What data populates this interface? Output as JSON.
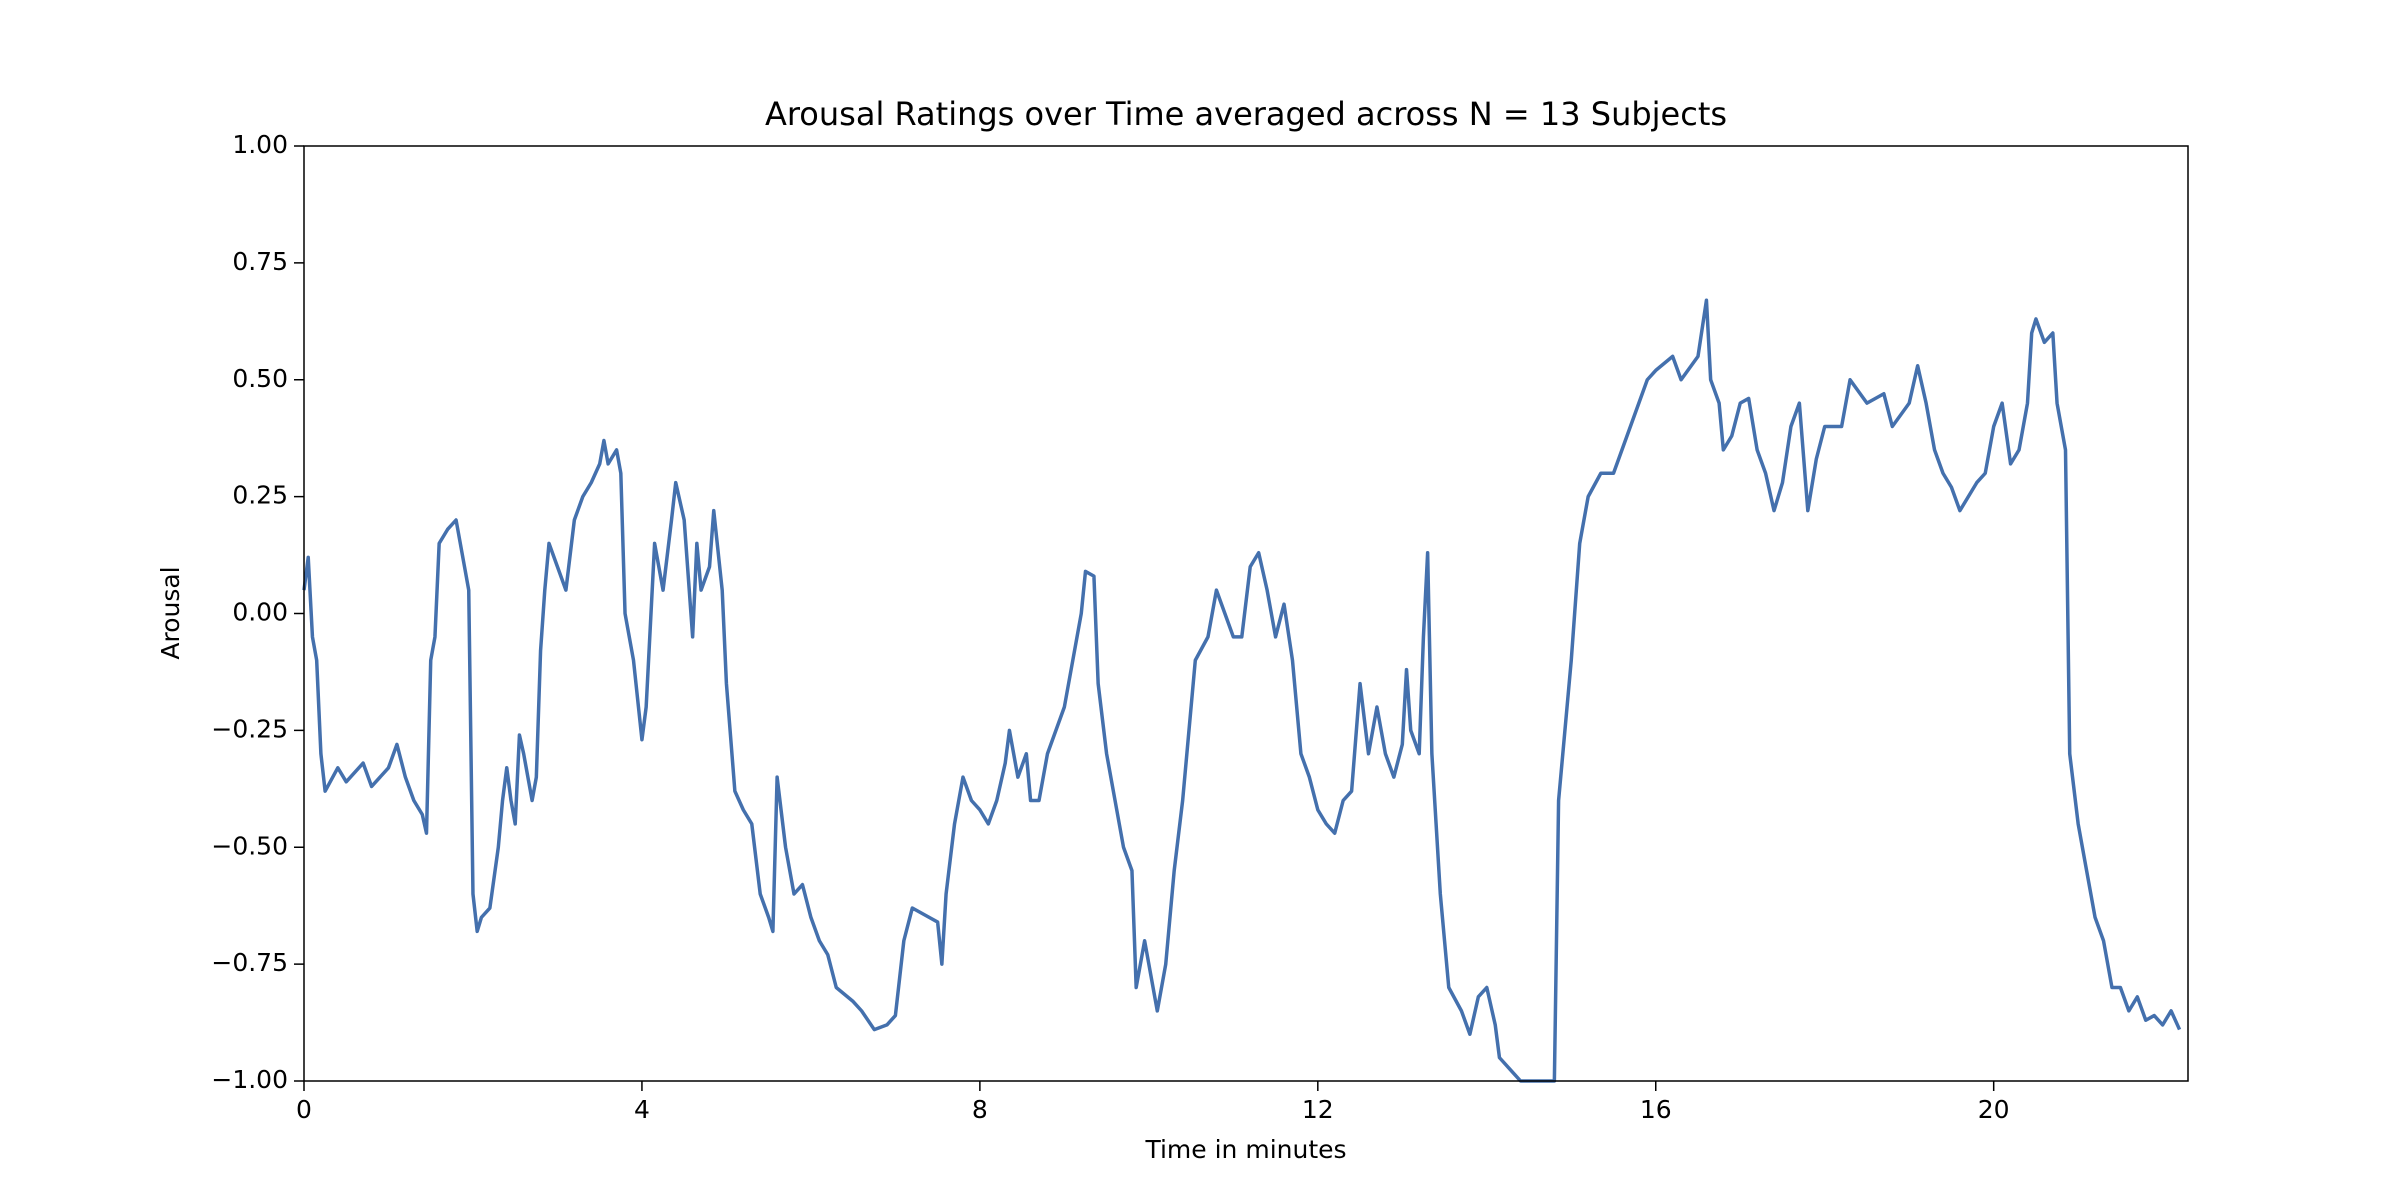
{
  "chart_data": {
    "type": "line",
    "title": "Arousal Ratings over Time averaged across N = 13 Subjects",
    "x_label": "Time in minutes",
    "y_label": "Arousal",
    "color": "#4470ad",
    "xlim": [
      0,
      22.3
    ],
    "ylim": [
      -1.0,
      1.0
    ],
    "xticks": [
      0,
      4,
      8,
      12,
      16,
      20
    ],
    "yticks": [
      {
        "value": -1.0,
        "label": "−1.00"
      },
      {
        "value": -0.75,
        "label": "−0.75"
      },
      {
        "value": -0.5,
        "label": "−0.50"
      },
      {
        "value": -0.25,
        "label": "−0.25"
      },
      {
        "value": 0.0,
        "label": "0.00"
      },
      {
        "value": 0.25,
        "label": "0.25"
      },
      {
        "value": 0.5,
        "label": "0.50"
      },
      {
        "value": 0.75,
        "label": "0.75"
      },
      {
        "value": 1.0,
        "label": "1.00"
      }
    ],
    "x": [
      0,
      0.05,
      0.1,
      0.15,
      0.2,
      0.25,
      0.4,
      0.5,
      0.7,
      0.8,
      1.0,
      1.1,
      1.2,
      1.3,
      1.4,
      1.45,
      1.5,
      1.55,
      1.6,
      1.7,
      1.8,
      1.9,
      1.95,
      2.0,
      2.05,
      2.1,
      2.2,
      2.3,
      2.35,
      2.4,
      2.45,
      2.5,
      2.55,
      2.6,
      2.7,
      2.75,
      2.8,
      2.85,
      2.9,
      3.0,
      3.1,
      3.2,
      3.3,
      3.4,
      3.5,
      3.55,
      3.6,
      3.7,
      3.75,
      3.8,
      3.9,
      4.0,
      4.05,
      4.15,
      4.25,
      4.35,
      4.4,
      4.5,
      4.6,
      4.65,
      4.7,
      4.8,
      4.85,
      4.95,
      5.0,
      5.1,
      5.2,
      5.3,
      5.4,
      5.5,
      5.55,
      5.6,
      5.7,
      5.8,
      5.9,
      6.0,
      6.1,
      6.2,
      6.3,
      6.5,
      6.6,
      6.75,
      6.9,
      7.0,
      7.1,
      7.2,
      7.4,
      7.5,
      7.55,
      7.6,
      7.7,
      7.8,
      7.9,
      8.0,
      8.1,
      8.2,
      8.3,
      8.35,
      8.45,
      8.55,
      8.6,
      8.7,
      8.8,
      8.9,
      9.0,
      9.1,
      9.2,
      9.25,
      9.35,
      9.4,
      9.5,
      9.6,
      9.7,
      9.8,
      9.85,
      9.95,
      10.1,
      10.2,
      10.3,
      10.4,
      10.45,
      10.55,
      10.7,
      10.8,
      10.9,
      11.0,
      11.1,
      11.2,
      11.3,
      11.4,
      11.5,
      11.6,
      11.7,
      11.8,
      11.9,
      12.0,
      12.1,
      12.2,
      12.3,
      12.4,
      12.5,
      12.6,
      12.7,
      12.8,
      12.9,
      13.0,
      13.05,
      13.1,
      13.2,
      13.25,
      13.3,
      13.35,
      13.4,
      13.45,
      13.5,
      13.55,
      13.7,
      13.8,
      13.9,
      14.0,
      14.1,
      14.15,
      14.3,
      14.4,
      14.7,
      14.8,
      14.85,
      15.0,
      15.1,
      15.2,
      15.35,
      15.5,
      15.6,
      15.8,
      15.9,
      16.0,
      16.2,
      16.3,
      16.5,
      16.6,
      16.65,
      16.75,
      16.8,
      16.9,
      17.0,
      17.1,
      17.2,
      17.3,
      17.4,
      17.5,
      17.6,
      17.7,
      17.8,
      17.9,
      18.0,
      18.2,
      18.3,
      18.5,
      18.7,
      18.8,
      19.0,
      19.1,
      19.2,
      19.3,
      19.4,
      19.5,
      19.6,
      19.8,
      19.9,
      20.0,
      20.1,
      20.2,
      20.3,
      20.4,
      20.45,
      20.5,
      20.6,
      20.7,
      20.75,
      20.85,
      20.9,
      21.0,
      21.1,
      21.2,
      21.3,
      21.4,
      21.5,
      21.6,
      21.7,
      21.8,
      21.9,
      22.0,
      22.1,
      22.2
    ],
    "values": [
      0.05,
      0.12,
      -0.05,
      -0.1,
      -0.3,
      -0.38,
      -0.33,
      -0.36,
      -0.32,
      -0.37,
      -0.33,
      -0.28,
      -0.35,
      -0.4,
      -0.43,
      -0.47,
      -0.1,
      -0.05,
      0.15,
      0.18,
      0.2,
      0.1,
      0.05,
      -0.6,
      -0.68,
      -0.65,
      -0.63,
      -0.5,
      -0.4,
      -0.33,
      -0.4,
      -0.45,
      -0.26,
      -0.3,
      -0.4,
      -0.35,
      -0.08,
      0.05,
      0.15,
      0.1,
      0.05,
      0.2,
      0.25,
      0.28,
      0.32,
      0.37,
      0.32,
      0.35,
      0.3,
      0.0,
      -0.1,
      -0.27,
      -0.2,
      0.15,
      0.05,
      0.2,
      0.28,
      0.2,
      -0.05,
      0.15,
      0.05,
      0.1,
      0.22,
      0.05,
      -0.15,
      -0.38,
      -0.42,
      -0.45,
      -0.6,
      -0.65,
      -0.68,
      -0.35,
      -0.5,
      -0.6,
      -0.58,
      -0.65,
      -0.7,
      -0.73,
      -0.8,
      -0.83,
      -0.85,
      -0.89,
      -0.88,
      -0.86,
      -0.7,
      -0.63,
      -0.65,
      -0.66,
      -0.75,
      -0.6,
      -0.45,
      -0.35,
      -0.4,
      -0.42,
      -0.45,
      -0.4,
      -0.32,
      -0.25,
      -0.35,
      -0.3,
      -0.4,
      -0.4,
      -0.3,
      -0.25,
      -0.2,
      -0.1,
      0.0,
      0.09,
      0.08,
      -0.15,
      -0.3,
      -0.4,
      -0.5,
      -0.55,
      -0.8,
      -0.7,
      -0.85,
      -0.75,
      -0.55,
      -0.4,
      -0.3,
      -0.1,
      -0.05,
      0.05,
      0.0,
      -0.05,
      -0.05,
      0.1,
      0.13,
      0.05,
      -0.05,
      0.02,
      -0.1,
      -0.3,
      -0.35,
      -0.42,
      -0.45,
      -0.47,
      -0.4,
      -0.38,
      -0.15,
      -0.3,
      -0.2,
      -0.3,
      -0.35,
      -0.28,
      -0.12,
      -0.25,
      -0.3,
      -0.05,
      0.13,
      -0.3,
      -0.45,
      -0.6,
      -0.7,
      -0.8,
      -0.85,
      -0.9,
      -0.82,
      -0.8,
      -0.88,
      -0.95,
      -0.98,
      -1.0,
      -1.0,
      -1.0,
      -0.4,
      -0.1,
      0.15,
      0.25,
      0.3,
      0.3,
      0.35,
      0.45,
      0.5,
      0.52,
      0.55,
      0.5,
      0.55,
      0.67,
      0.5,
      0.45,
      0.35,
      0.38,
      0.45,
      0.46,
      0.35,
      0.3,
      0.22,
      0.28,
      0.4,
      0.45,
      0.22,
      0.33,
      0.4,
      0.4,
      0.5,
      0.45,
      0.47,
      0.4,
      0.45,
      0.53,
      0.45,
      0.35,
      0.3,
      0.27,
      0.22,
      0.28,
      0.3,
      0.4,
      0.45,
      0.32,
      0.35,
      0.45,
      0.6,
      0.63,
      0.58,
      0.6,
      0.45,
      0.35,
      -0.3,
      -0.45,
      -0.55,
      -0.65,
      -0.7,
      -0.8,
      -0.8,
      -0.85,
      -0.82,
      -0.87,
      -0.86,
      -0.88,
      -0.85,
      -0.89
    ]
  }
}
